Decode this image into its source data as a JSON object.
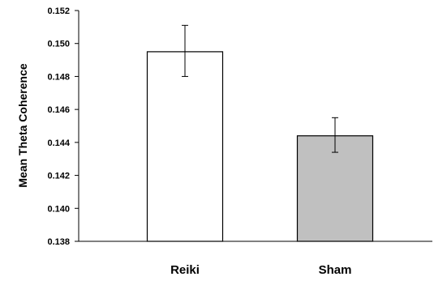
{
  "chart_data": {
    "type": "bar",
    "title": "",
    "xlabel": "",
    "ylabel": "Mean Theta Coherence",
    "categories": [
      "Reiki",
      "Sham"
    ],
    "values": [
      0.1495,
      0.1444
    ],
    "error_bars": [
      {
        "low": 0.148,
        "high": 0.1511
      },
      {
        "low": 0.1434,
        "high": 0.1455
      }
    ],
    "bar_colors": [
      "#ffffff",
      "#c0c0c0"
    ],
    "bar_outline_color": "#000000",
    "ylim": [
      0.138,
      0.152
    ],
    "yticks": [
      "0.138",
      "0.140",
      "0.142",
      "0.144",
      "0.146",
      "0.148",
      "0.150",
      "0.152"
    ],
    "grid": false,
    "legend": "none"
  }
}
